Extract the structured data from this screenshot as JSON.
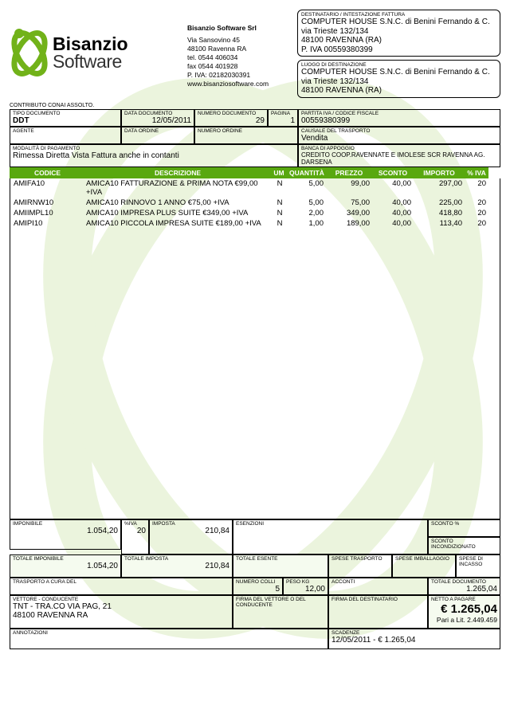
{
  "company": {
    "logo1": "Bisanzio",
    "logo2": "Software",
    "name": "Bisanzio Software Srl",
    "addr1": "Via Sansovino 45",
    "addr2": "48100 Ravenna RA",
    "tel": "tel. 0544 406034",
    "fax": "fax 0544 401928",
    "piva": "P. IVA: 02182030391",
    "web": "www.bisanziosoftware.com"
  },
  "recipient": {
    "label": "DESTINATARIO / INTESTAZIONE FATTURA",
    "name": "COMPUTER HOUSE S.N.C. di Benini Fernando & C.",
    "addr": "via Trieste 132/134",
    "city": "48100 RAVENNA (RA)",
    "piva": "P. IVA 00559380399"
  },
  "dest": {
    "label": "LUOGO DI DESTINAZIONE",
    "name": "COMPUTER HOUSE S.N.C. di Benini Fernando & C.",
    "addr": "via Trieste 132/134",
    "city": "48100 RAVENNA (RA)"
  },
  "contributo": "CONTRIBUTO CONAI ASSOLTO.",
  "docmeta": {
    "tipo_l": "TIPO DOCUMENTO",
    "tipo_v": "DDT",
    "data_l": "DATA DOCUMENTO",
    "data_v": "12/05/2011",
    "num_l": "NUMERO DOCUMENTO",
    "num_v": "29",
    "pag_l": "PAGINA",
    "pag_v": "1",
    "pivacf_l": "PARTITA IVA / CODICE FISCALE",
    "pivacf_v": "00559380399",
    "agente_l": "AGENTE",
    "agente_v": "",
    "dord_l": "DATA ORDINE",
    "dord_v": "",
    "nord_l": "NUMERO ORDINE",
    "nord_v": "",
    "caus_l": "CAUSALE DEL TRASPORTO",
    "caus_v": "Vendita",
    "pay_l": "MODALITÀ DI PAGAMENTO",
    "pay_v": "Rimessa Diretta Vista Fattura anche in contanti",
    "bank_l": "BANCA DI APPOGGIO",
    "bank_v": "CREDITO COOP.RAVENNATE E IMOLESE SCR RAVENNA AG. DARSENA"
  },
  "cols": {
    "codice": "CODICE",
    "descrizione": "DESCRIZIONE",
    "um": "UM",
    "quantita": "QUANTITÀ",
    "prezzo": "PREZZO",
    "sconto": "SCONTO",
    "importo": "IMPORTO",
    "iva": "% IVA"
  },
  "rows": [
    {
      "cod": "AMIFA10",
      "desc": "AMICA10 FATTURAZIONE & PRIMA NOTA €99,00 +IVA",
      "um": "N",
      "qty": "5,00",
      "prz": "99,00",
      "sco": "40,00",
      "imp": "297,00",
      "iva": "20"
    },
    {
      "cod": "AMIRNW10",
      "desc": "AMICA10 RINNOVO 1 ANNO €75,00 +IVA",
      "um": "N",
      "qty": "5,00",
      "prz": "75,00",
      "sco": "40,00",
      "imp": "225,00",
      "iva": "20"
    },
    {
      "cod": "AMIIMPL10",
      "desc": "AMICA10 IMPRESA PLUS SUITE €349,00 +IVA",
      "um": "N",
      "qty": "2,00",
      "prz": "349,00",
      "sco": "40,00",
      "imp": "418,80",
      "iva": "20"
    },
    {
      "cod": "AMIPI10",
      "desc": "AMICA10 PICCOLA IMPRESA SUITE €189,00 +IVA",
      "um": "N",
      "qty": "1,00",
      "prz": "189,00",
      "sco": "40,00",
      "imp": "113,40",
      "iva": "20"
    }
  ],
  "totals": {
    "impon_l": "IMPONIBILE",
    "impon_v": "1.054,20",
    "aliva_l": "%IVA",
    "aliva_v": "20",
    "imposta_l": "IMPOSTA",
    "imposta_v": "210,84",
    "esenz_l": "ESENZIONI",
    "esenz_v": "",
    "scontop_l": "SCONTO %",
    "scontop_v": "",
    "scontoi_l": "SCONTO INCONDIZIONATO",
    "scontoi_v": "",
    "totimp_l": "TOTALE IMPONIBILE",
    "totimp_v": "1.054,20",
    "totiva_l": "TOTALE IMPOSTA",
    "totiva_v": "210,84",
    "totes_l": "TOTALE ESENTE",
    "totes_v": "",
    "sptra_l": "SPESE TRASPORTO",
    "sptra_v": "",
    "spimb_l": "SPESE IMBALLAGGIO",
    "spimb_v": "",
    "spinc_l": "SPESE DI INCASSO",
    "spinc_v": "",
    "tracura_l": "TRASPORTO A CURA DEL",
    "tracura_v": "",
    "colli_l": "NUMERO COLLI",
    "colli_v": "5",
    "peso_l": "PESO KG",
    "peso_v": "12,00",
    "acconti_l": "ACCONTI",
    "acconti_v": "",
    "totdoc_l": "TOTALE DOCUMENTO",
    "totdoc_v": "1.265,04",
    "vett_l": "VETTORE - CONDUCENTE",
    "vett_v1": "TNT - TRA.CO VIA PAG, 21",
    "vett_v2": "48100 RAVENNA RA",
    "firma1_l": "FIRMA DEL VETTORE O DEL CONDUCENTE",
    "firma2_l": "FIRMA DEL DESTINATARIO",
    "netto_l": "NETTO A PAGARE",
    "netto_v": "€ 1.265,04",
    "netto_lit": "Pari a Lit. 2.449.459",
    "ann_l": "ANNOTAZIONI",
    "ann_v": "",
    "scad_l": "SCADENZE",
    "scad_v": "12/05/2011 - € 1.265,04"
  },
  "colors": {
    "green": "#59a80f",
    "pale": "#f5fbef",
    "wm": "#c7e29f"
  }
}
